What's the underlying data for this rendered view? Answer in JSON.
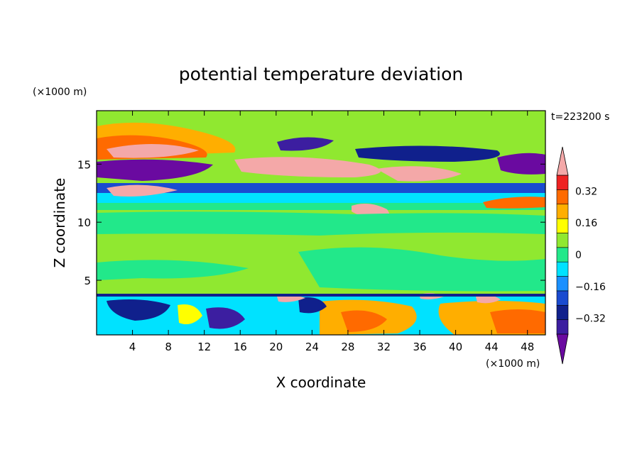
{
  "chart_data": {
    "type": "heatmap",
    "title": "potential temperature deviation",
    "xlabel": "X coordinate",
    "ylabel": "Z coordinate",
    "x_units": "(×1000 m)",
    "y_units": "(×1000 m)",
    "time_label": "t=223200 s",
    "xlim": [
      0,
      50
    ],
    "ylim": [
      0.3,
      19.6
    ],
    "x_ticks": [
      4,
      8,
      12,
      16,
      20,
      24,
      28,
      32,
      36,
      40,
      44,
      48
    ],
    "y_ticks": [
      5,
      10,
      15
    ],
    "colorbar": {
      "levels": [
        -0.48,
        -0.4,
        -0.32,
        -0.24,
        -0.16,
        -0.08,
        0,
        0.08,
        0.16,
        0.24,
        0.32,
        0.4,
        0.48
      ],
      "colors": [
        "#6a0aa0",
        "#3c1ea0",
        "#10208c",
        "#1a4bd0",
        "#1a90ff",
        "#00e2ff",
        "#22e88a",
        "#90e830",
        "#ffff00",
        "#ffae00",
        "#ff6a00",
        "#ee2222",
        "#f4a8a8"
      ],
      "tick_labels": [
        "0.32",
        "0.16",
        "0",
        "−0.16",
        "−0.32"
      ],
      "tick_values": [
        0.32,
        0.16,
        0,
        -0.16,
        -0.32
      ],
      "extend": "both"
    },
    "grid": false,
    "legend_position": "right"
  }
}
